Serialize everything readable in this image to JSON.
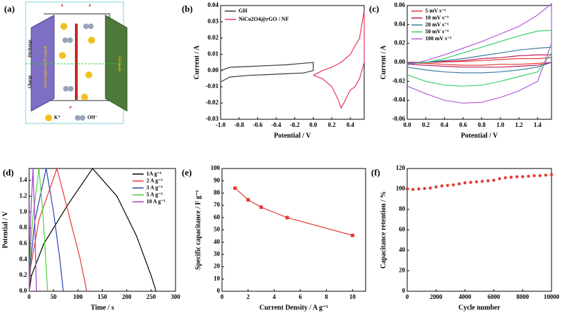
{
  "schematic": {
    "panel": "(a)",
    "discharge": "Discharge",
    "charge": "Charge",
    "cathode": "NiCo2O4@rGO/NF cathode",
    "anode": "GH anode",
    "electron": "e",
    "cation": "K⁺",
    "anion": "OH⁻"
  },
  "chart_data": [
    {
      "type": "line",
      "panel": "(b)",
      "xlabel": "Potential / V",
      "ylabel": "Current / A",
      "legend": "upper left",
      "xlim": [
        -1.0,
        0.55
      ],
      "ylim": [
        -0.03,
        0.04
      ],
      "xticks": [
        {
          "value": -1.0,
          "label": "-1.0"
        },
        -0.8,
        -0.6,
        -0.4,
        -0.2,
        {
          "value": 0,
          "label": "0.0"
        },
        0.2,
        0.4
      ],
      "yticks": [
        -0.03,
        -0.02,
        -0.01,
        {
          "value": 0,
          "label": "0.00"
        },
        0.01,
        0.02,
        0.03,
        0.04
      ],
      "series": [
        {
          "name": "GH",
          "color": "#2f3b3b",
          "x": [
            -1.0,
            -0.9,
            -0.7,
            -0.5,
            -0.3,
            -0.1,
            0.0,
            0.0,
            -0.1,
            -0.3,
            -0.5,
            -0.7,
            -0.9,
            -1.0,
            -1.0
          ],
          "values": [
            -0.007,
            -0.004,
            -0.003,
            -0.0025,
            -0.002,
            -0.0015,
            0.0,
            0.005,
            0.0045,
            0.0035,
            0.003,
            0.0025,
            0.002,
            0.0,
            -0.007
          ]
        },
        {
          "name": "NiCo2O4@rGO / NF",
          "color": "#e8335a",
          "x": [
            0.0,
            0.1,
            0.2,
            0.27,
            0.3,
            0.33,
            0.4,
            0.45,
            0.5,
            0.55,
            0.55,
            0.5,
            0.45,
            0.4,
            0.3,
            0.2,
            0.1,
            0.0
          ],
          "values": [
            -0.003,
            -0.005,
            -0.01,
            -0.018,
            -0.023,
            -0.02,
            -0.012,
            -0.01,
            -0.005,
            0.005,
            0.037,
            0.02,
            0.015,
            0.01,
            0.005,
            0.002,
            0.0,
            -0.003
          ]
        }
      ]
    },
    {
      "type": "line",
      "panel": "(c)",
      "xlabel": "Potential / V",
      "ylabel": "Current / A",
      "legend": "upper left",
      "xlim": [
        0,
        1.55
      ],
      "ylim": [
        -0.06,
        0.06
      ],
      "xticks": [
        {
          "value": 0,
          "label": "0.0"
        },
        0.2,
        0.4,
        0.6,
        0.8,
        {
          "value": 1,
          "label": "1.0"
        },
        1.2,
        1.4
      ],
      "yticks": [
        -0.06,
        -0.04,
        -0.02,
        {
          "value": 0,
          "label": "0.00"
        },
        0.02,
        0.04,
        0.06
      ],
      "series": [
        {
          "name": "5 mV s⁻¹",
          "color": "#e53935",
          "x": [
            0,
            0.2,
            0.4,
            0.6,
            0.8,
            1.0,
            1.2,
            1.4,
            1.55,
            1.55,
            1.4,
            1.2,
            1.0,
            0.8,
            0.6,
            0.4,
            0.2,
            0
          ],
          "values": [
            0,
            0,
            0.0005,
            0.001,
            0.002,
            0.003,
            0.004,
            0.004,
            0.005,
            0,
            -0.001,
            -0.002,
            -0.002,
            -0.003,
            -0.003,
            -0.002,
            -0.001,
            -0.001
          ]
        },
        {
          "name": "10 mV s⁻¹",
          "color": "#c2185b",
          "x": [
            0,
            0.2,
            0.4,
            0.6,
            0.8,
            1.0,
            1.2,
            1.4,
            1.55,
            1.55,
            1.4,
            1.2,
            1.0,
            0.8,
            0.6,
            0.4,
            0.2,
            0
          ],
          "values": [
            0,
            0,
            0.001,
            0.002,
            0.004,
            0.005,
            0.007,
            0.008,
            0.008,
            0,
            -0.003,
            -0.004,
            -0.005,
            -0.005,
            -0.005,
            -0.004,
            -0.003,
            -0.002
          ]
        },
        {
          "name": "20 mV s⁻¹",
          "color": "#3a7ca5",
          "x": [
            0,
            0.2,
            0.4,
            0.6,
            0.8,
            1.0,
            1.2,
            1.4,
            1.55,
            1.55,
            1.4,
            1.2,
            1.0,
            0.8,
            0.6,
            0.4,
            0.2,
            0
          ],
          "values": [
            -0.001,
            0,
            0.002,
            0.004,
            0.007,
            0.01,
            0.013,
            0.015,
            0.016,
            0,
            -0.005,
            -0.008,
            -0.01,
            -0.011,
            -0.011,
            -0.01,
            -0.008,
            -0.005
          ]
        },
        {
          "name": "50 mV s⁻¹",
          "color": "#33d16a",
          "x": [
            0,
            0.2,
            0.4,
            0.6,
            0.8,
            1.0,
            1.2,
            1.4,
            1.55,
            1.55,
            1.4,
            1.2,
            1.0,
            0.8,
            0.6,
            0.4,
            0.2,
            0
          ],
          "values": [
            -0.002,
            0,
            0.004,
            0.01,
            0.016,
            0.022,
            0.028,
            0.033,
            0.034,
            0.01,
            -0.01,
            -0.015,
            -0.02,
            -0.024,
            -0.025,
            -0.024,
            -0.02,
            -0.013
          ]
        },
        {
          "name": "100 mV s⁻¹",
          "color": "#b25cd6",
          "x": [
            0,
            0.2,
            0.4,
            0.6,
            0.8,
            1.0,
            1.2,
            1.4,
            1.55,
            1.55,
            1.4,
            1.2,
            1.0,
            0.8,
            0.6,
            0.4,
            0.2,
            0
          ],
          "values": [
            -0.003,
            0.002,
            0.008,
            0.015,
            0.022,
            0.03,
            0.038,
            0.05,
            0.062,
            0.02,
            -0.02,
            -0.03,
            -0.037,
            -0.042,
            -0.043,
            -0.04,
            -0.033,
            -0.025
          ]
        }
      ]
    },
    {
      "type": "line",
      "panel": "(d)",
      "xlabel": "Time / s",
      "ylabel": "Potential / V",
      "legend": "upper right",
      "xlim": [
        0,
        300
      ],
      "ylim": [
        0,
        1.55
      ],
      "xticks": [
        0,
        50,
        100,
        150,
        200,
        250,
        300
      ],
      "yticks": [
        {
          "value": 0,
          "label": "0.0"
        },
        0.2,
        0.4,
        0.6,
        0.8,
        {
          "value": 1,
          "label": "1.0"
        },
        1.2,
        1.4
      ],
      "series": [
        {
          "name": "1A g⁻¹",
          "color": "#000000",
          "x": [
            0,
            5,
            30,
            80,
            130,
            180,
            220,
            250,
            260
          ],
          "values": [
            0,
            0.2,
            0.6,
            1.1,
            1.55,
            1.2,
            0.7,
            0.2,
            0
          ]
        },
        {
          "name": "2 A g⁻¹",
          "color": "#e53935",
          "x": [
            0,
            3,
            20,
            57,
            80,
            105,
            118
          ],
          "values": [
            0,
            0.3,
            0.9,
            1.55,
            1.0,
            0.4,
            0
          ]
        },
        {
          "name": "3 A g⁻¹",
          "color": "#2a3fb0",
          "x": [
            0,
            2,
            12,
            35,
            50,
            63,
            70
          ],
          "values": [
            0,
            0.3,
            0.9,
            1.55,
            1.0,
            0.4,
            0
          ]
        },
        {
          "name": "5 A g⁻¹",
          "color": "#4cd137",
          "x": [
            0,
            1,
            7,
            20,
            28,
            34,
            38
          ],
          "values": [
            0,
            0.3,
            0.9,
            1.55,
            1.0,
            0.4,
            0
          ]
        },
        {
          "name": "10 A g⁻¹",
          "color": "#a53bc9",
          "x": [
            0,
            0.5,
            3,
            8,
            11,
            13.5,
            15
          ],
          "values": [
            0,
            0.3,
            0.9,
            1.55,
            1.0,
            0.4,
            0
          ]
        }
      ]
    },
    {
      "type": "line",
      "panel": "(e)",
      "xlabel": "Current Density / A g⁻¹",
      "ylabel": "Specific capacitance / F g⁻¹",
      "color": "#e53935",
      "marker": "square",
      "xlim": [
        0,
        11
      ],
      "ylim": [
        0,
        100
      ],
      "xticks": [
        0,
        2,
        4,
        6,
        8,
        10
      ],
      "yticks": [
        0,
        10,
        20,
        30,
        40,
        50,
        60,
        70,
        80,
        90,
        100
      ],
      "x": [
        1,
        2,
        3,
        5,
        10
      ],
      "values": [
        84,
        74.5,
        68.5,
        60,
        45.5
      ]
    },
    {
      "type": "scatter",
      "panel": "(f)",
      "xlabel": "Cycle number",
      "ylabel": "Capacitance retention / %",
      "color": "#e53935",
      "xlim": [
        0,
        10000
      ],
      "ylim": [
        0,
        120
      ],
      "xticks": [
        0,
        2000,
        4000,
        6000,
        8000,
        10000
      ],
      "yticks": [
        0,
        20,
        40,
        60,
        80,
        100,
        120
      ],
      "x": [
        0,
        400,
        800,
        1200,
        1600,
        2000,
        2400,
        2800,
        3200,
        3600,
        4000,
        4400,
        4800,
        5200,
        5600,
        6000,
        6400,
        6800,
        7200,
        7600,
        8000,
        8400,
        8800,
        9200,
        9600,
        10000
      ],
      "values": [
        100,
        99.5,
        100,
        100.5,
        101,
        102,
        103,
        103.5,
        104,
        105,
        106,
        106.5,
        107,
        107.5,
        108,
        108.5,
        110,
        111,
        111.5,
        112,
        112,
        112.5,
        113,
        113,
        113.5,
        114
      ]
    }
  ]
}
